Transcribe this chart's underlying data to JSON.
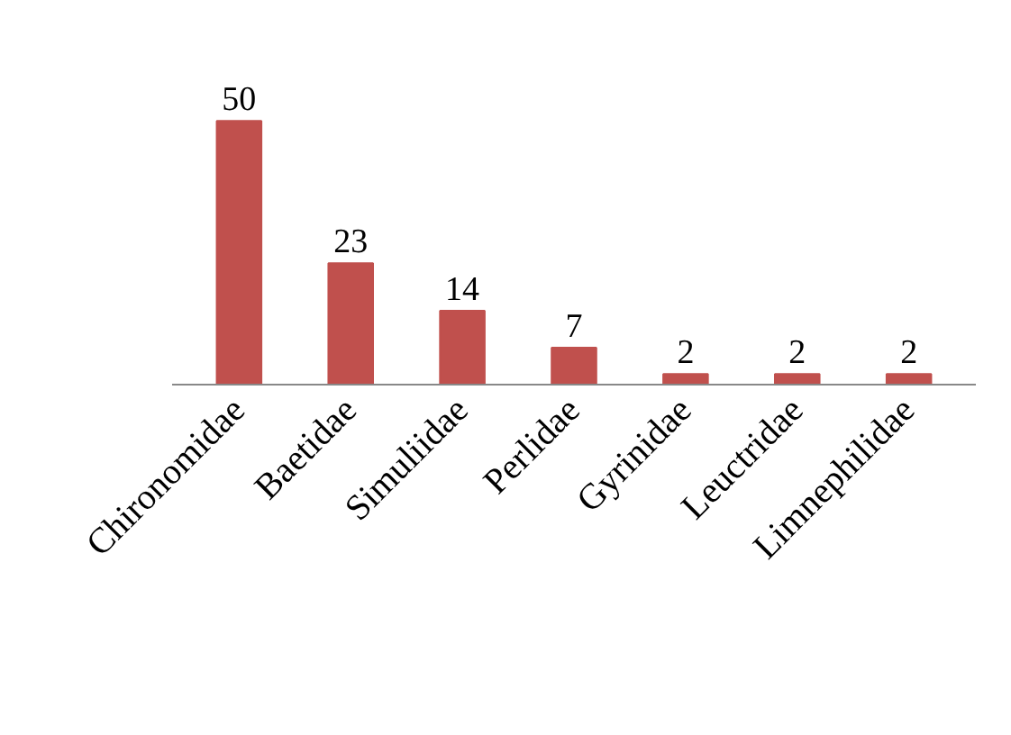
{
  "chart_data": {
    "type": "bar",
    "categories": [
      "Chironomidae",
      "Baetidae",
      "Simuliidae",
      "Perlidae",
      "Gyrinidae",
      "Leuctridae",
      "Limnephilidae"
    ],
    "values": [
      50,
      23,
      14,
      7,
      2,
      2,
      2
    ],
    "color": "#c0504d",
    "data_labels": true,
    "grid": false
  }
}
